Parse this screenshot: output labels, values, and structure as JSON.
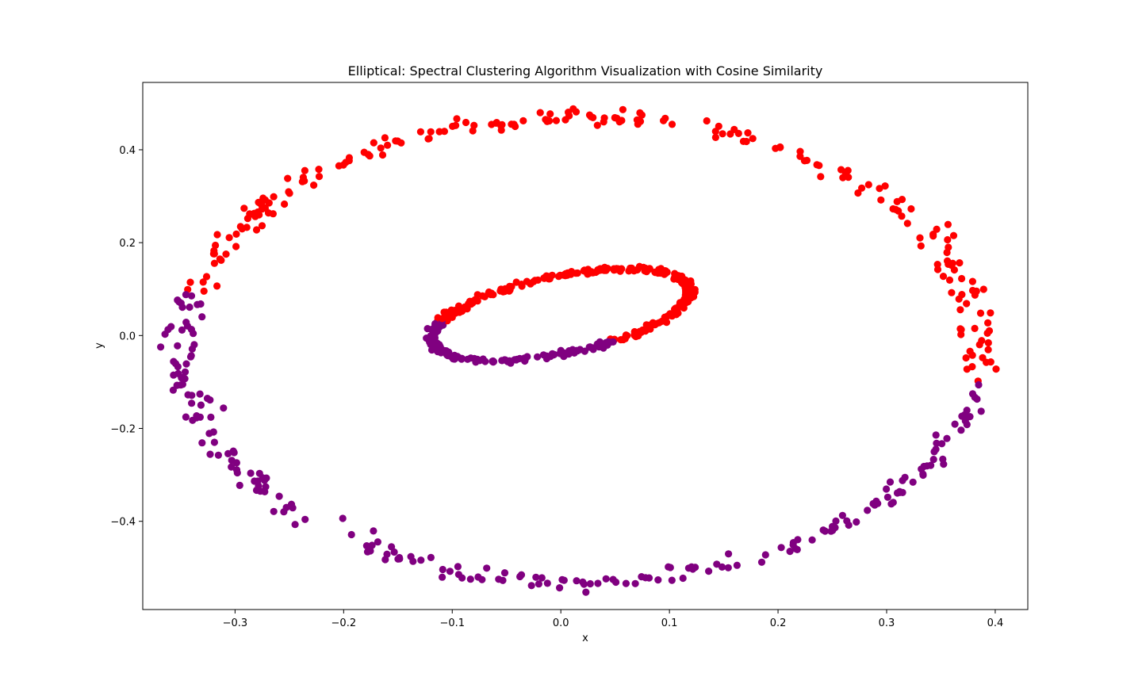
{
  "chart_data": {
    "type": "scatter",
    "title": "Elliptical: Spectral Clustering Algorithm Visualization with Cosine Similarity",
    "xlabel": "x",
    "ylabel": "y",
    "xlim": [
      -0.385,
      0.43
    ],
    "ylim": [
      -0.59,
      0.545
    ],
    "xticks": [
      -0.3,
      -0.2,
      -0.1,
      0.0,
      0.1,
      0.2,
      0.3,
      0.4
    ],
    "xtick_labels": [
      "−0.3",
      "−0.2",
      "−0.1",
      "0.0",
      "0.1",
      "0.2",
      "0.3",
      "0.4"
    ],
    "yticks": [
      0.4,
      0.2,
      0.0,
      -0.2,
      -0.4
    ],
    "ytick_labels": [
      "0.4",
      "0.2",
      "0.0",
      "−0.2",
      "−0.4"
    ],
    "grid": false,
    "legend": "none",
    "cluster_colors": [
      "#ff0000",
      "#800080"
    ],
    "rings": [
      {
        "center": [
          0.018,
          -0.03
        ],
        "radius_x": 0.368,
        "radius_y": 0.5,
        "tilt_deg": 0,
        "n_points": 440,
        "jitter": 0.012
      },
      {
        "center": [
          0.0,
          0.045
        ],
        "radius_x": 0.135,
        "radius_y": 0.075,
        "tilt_deg": 35,
        "n_points": 400,
        "jitter": 0.004
      }
    ],
    "cluster_rule": "points with a value above the line through the origin of slope tan(-15 deg) are the red cluster; the rest are the purple cluster"
  }
}
